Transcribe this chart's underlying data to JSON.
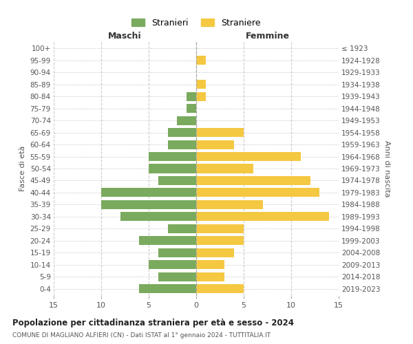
{
  "age_groups": [
    "0-4",
    "5-9",
    "10-14",
    "15-19",
    "20-24",
    "25-29",
    "30-34",
    "35-39",
    "40-44",
    "45-49",
    "50-54",
    "55-59",
    "60-64",
    "65-69",
    "70-74",
    "75-79",
    "80-84",
    "85-89",
    "90-94",
    "95-99",
    "100+"
  ],
  "birth_years": [
    "2019-2023",
    "2014-2018",
    "2009-2013",
    "2004-2008",
    "1999-2003",
    "1994-1998",
    "1989-1993",
    "1984-1988",
    "1979-1983",
    "1974-1978",
    "1969-1973",
    "1964-1968",
    "1959-1963",
    "1954-1958",
    "1949-1953",
    "1944-1948",
    "1939-1943",
    "1934-1938",
    "1929-1933",
    "1924-1928",
    "≤ 1923"
  ],
  "maschi": [
    6,
    4,
    5,
    4,
    6,
    3,
    8,
    10,
    10,
    4,
    5,
    5,
    3,
    3,
    2,
    1,
    1,
    0,
    0,
    0,
    0
  ],
  "femmine": [
    5,
    3,
    3,
    4,
    5,
    5,
    14,
    7,
    13,
    12,
    6,
    11,
    4,
    5,
    0,
    0,
    1,
    1,
    0,
    1,
    0
  ],
  "color_maschi": "#7aaa5e",
  "color_femmine": "#f5c842",
  "title": "Popolazione per cittadinanza straniera per età e sesso - 2024",
  "subtitle": "COMUNE DI MAGLIANO ALFIERI (CN) - Dati ISTAT al 1° gennaio 2024 - TUTTITALIA.IT",
  "xlabel_left": "Maschi",
  "xlabel_right": "Femmine",
  "ylabel_left": "Fasce di età",
  "ylabel_right": "Anni di nascita",
  "legend_maschi": "Stranieri",
  "legend_femmine": "Straniere",
  "xlim": 15,
  "background_color": "#ffffff",
  "grid_color": "#cccccc"
}
